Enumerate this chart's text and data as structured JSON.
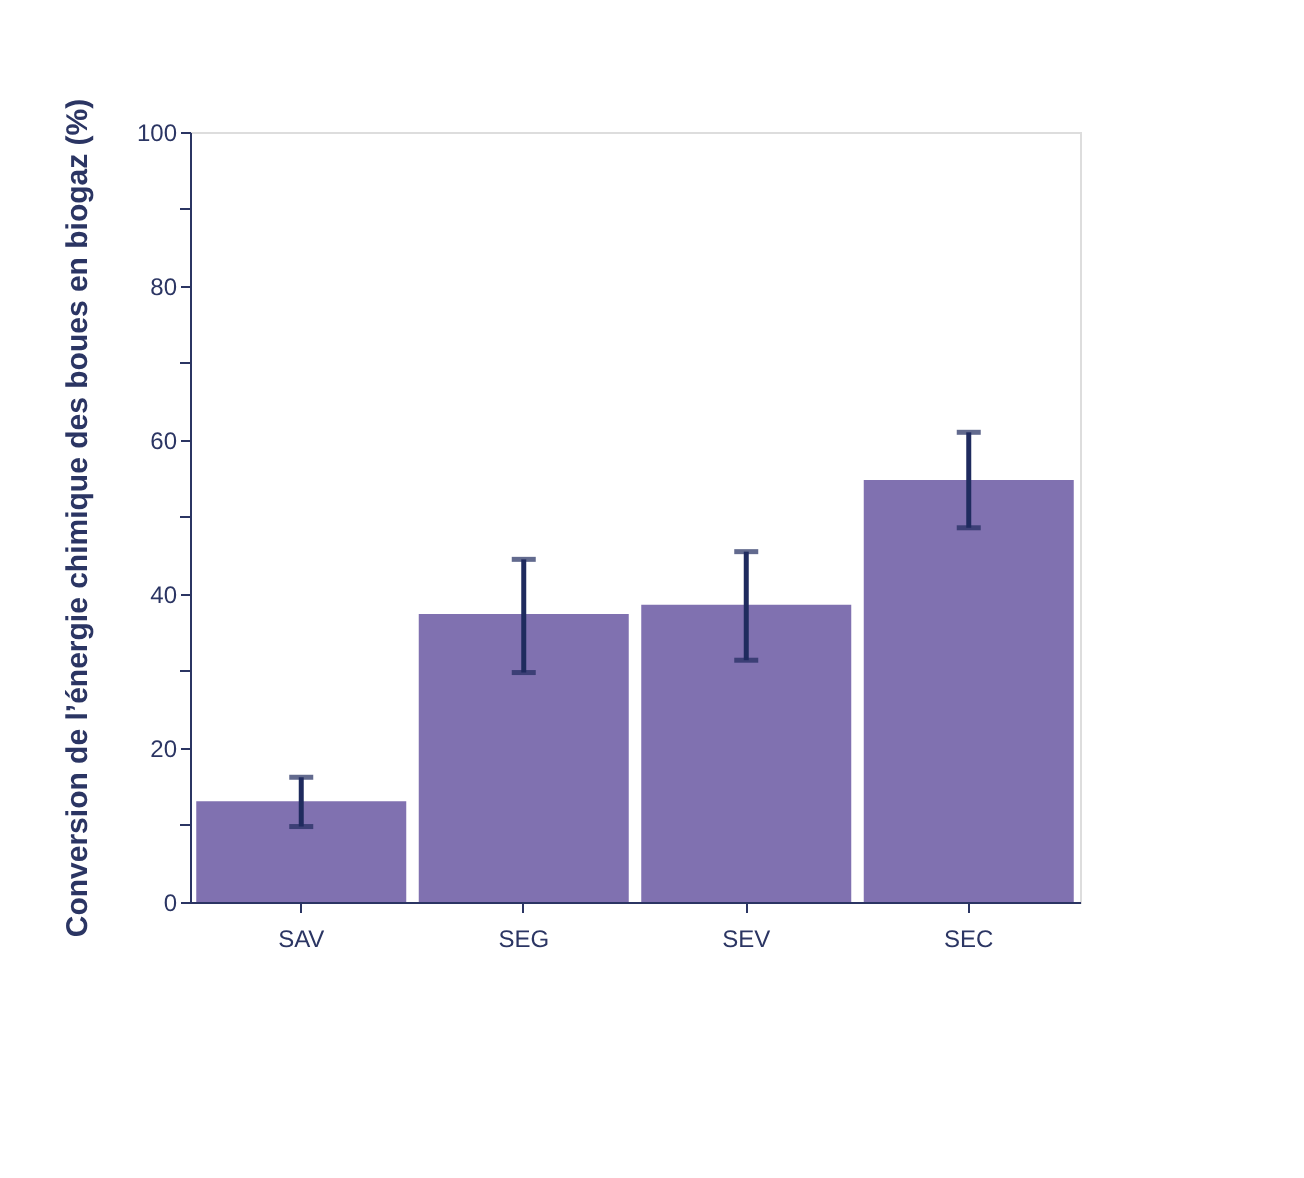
{
  "chart_data": {
    "type": "bar",
    "ylabel": "Conversion de l’énergie chimique des boues en biogaz (%)",
    "categories": [
      "SAV",
      "SEG",
      "SEV",
      "SEC"
    ],
    "values": [
      13.1,
      37.4,
      38.6,
      54.8
    ],
    "color": "#8071b0",
    "errors": [
      [
        9.8,
        16.2
      ],
      [
        29.8,
        44.5
      ],
      [
        31.4,
        45.5
      ],
      [
        48.6,
        61.0
      ]
    ],
    "ylim": [
      0,
      100
    ],
    "yticks": [
      0,
      {
        "value": 10,
        "label": null
      },
      20,
      {
        "value": 30,
        "label": null
      },
      40,
      {
        "value": 50,
        "label": null
      },
      60,
      {
        "value": 70,
        "label": null
      },
      80,
      {
        "value": 90,
        "label": null
      },
      100
    ],
    "grid": false
  }
}
